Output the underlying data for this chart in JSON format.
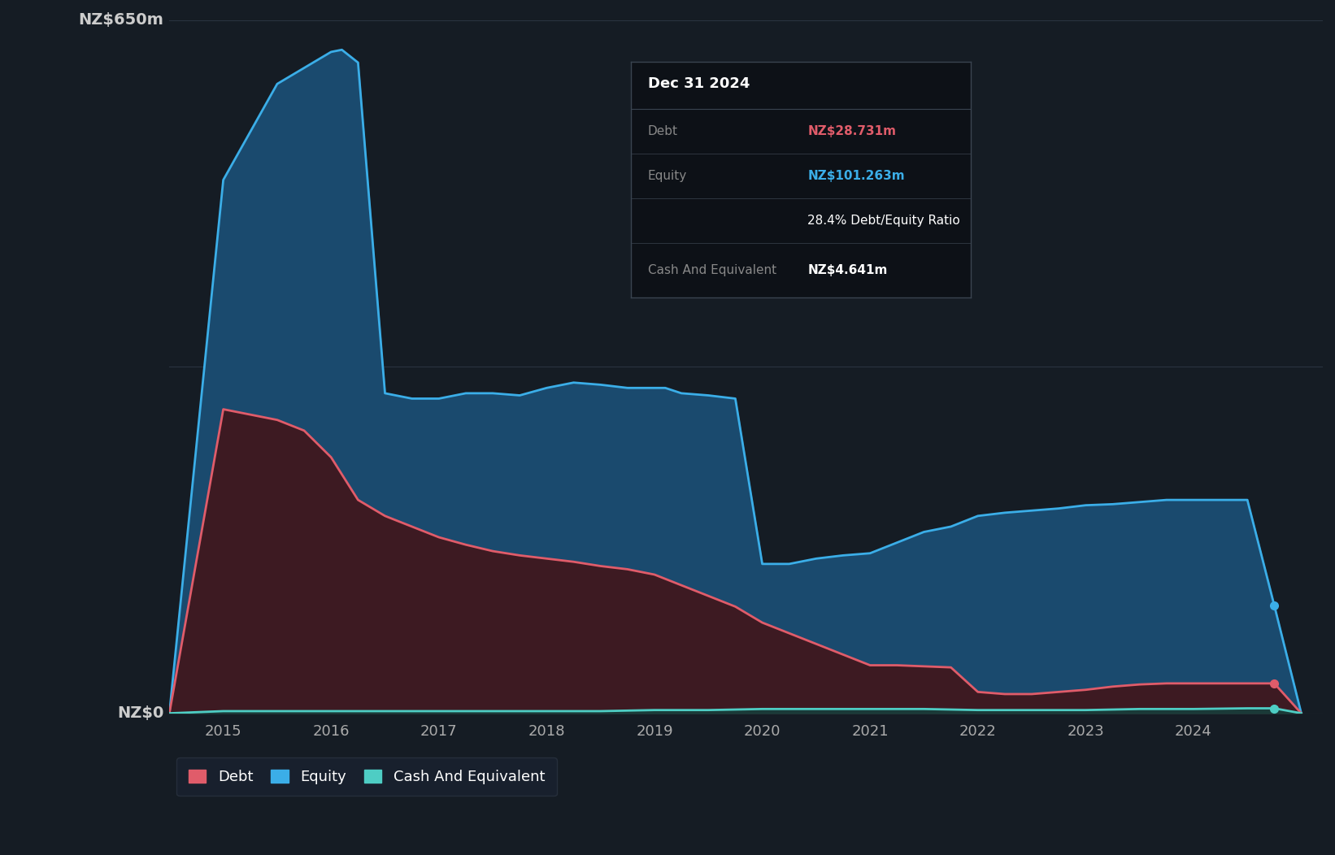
{
  "background_color": "#151c24",
  "plot_bg_color": "#151c24",
  "grid_color": "#2a3340",
  "ylabel_top": "NZ$650m",
  "ylabel_zero": "NZ$0",
  "x_ticks": [
    2015,
    2016,
    2017,
    2018,
    2019,
    2020,
    2021,
    2022,
    2023,
    2024
  ],
  "equity_color": "#3baee8",
  "equity_fill": "#1a4a6e",
  "debt_color": "#e05c6a",
  "debt_fill": "#3d1a22",
  "cash_color": "#4ecdc4",
  "cash_fill": "#1a3a38",
  "tooltip_bg": "#0d1117",
  "tooltip_border": "#3a4450",
  "tooltip_title": "Dec 31 2024",
  "tooltip_debt_label": "Debt",
  "tooltip_debt_value": "NZ$28.731m",
  "tooltip_equity_label": "Equity",
  "tooltip_equity_value": "NZ$101.263m",
  "tooltip_ratio": "28.4% Debt/Equity Ratio",
  "tooltip_cash_label": "Cash And Equivalent",
  "tooltip_cash_value": "NZ$4.641m",
  "legend_labels": [
    "Debt",
    "Equity",
    "Cash And Equivalent"
  ],
  "equity_data": {
    "years": [
      2014.5,
      2015.0,
      2015.5,
      2015.75,
      2016.0,
      2016.1,
      2016.25,
      2016.5,
      2016.75,
      2017.0,
      2017.25,
      2017.5,
      2017.75,
      2018.0,
      2018.25,
      2018.5,
      2018.75,
      2019.0,
      2019.1,
      2019.25,
      2019.5,
      2019.75,
      2020.0,
      2020.25,
      2020.5,
      2020.75,
      2021.0,
      2021.25,
      2021.5,
      2021.75,
      2022.0,
      2022.25,
      2022.5,
      2022.75,
      2023.0,
      2023.25,
      2023.5,
      2023.75,
      2024.0,
      2024.25,
      2024.5,
      2024.75,
      2025.0
    ],
    "values": [
      0,
      500,
      590,
      605,
      620,
      622,
      610,
      300,
      295,
      295,
      300,
      300,
      298,
      305,
      310,
      308,
      305,
      305,
      305,
      300,
      298,
      295,
      140,
      140,
      145,
      148,
      150,
      160,
      170,
      175,
      185,
      188,
      190,
      192,
      195,
      196,
      198,
      200,
      200,
      200,
      200,
      101,
      0
    ]
  },
  "debt_data": {
    "years": [
      2014.5,
      2015.0,
      2015.25,
      2015.5,
      2015.75,
      2016.0,
      2016.25,
      2016.5,
      2016.75,
      2017.0,
      2017.25,
      2017.5,
      2017.75,
      2018.0,
      2018.25,
      2018.5,
      2018.75,
      2019.0,
      2019.25,
      2019.5,
      2019.75,
      2020.0,
      2020.25,
      2020.5,
      2020.75,
      2021.0,
      2021.25,
      2021.5,
      2021.75,
      2022.0,
      2022.25,
      2022.5,
      2022.75,
      2023.0,
      2023.25,
      2023.5,
      2023.75,
      2024.0,
      2024.25,
      2024.5,
      2024.75,
      2025.0
    ],
    "values": [
      0,
      285,
      280,
      275,
      265,
      240,
      200,
      185,
      175,
      165,
      158,
      152,
      148,
      145,
      142,
      138,
      135,
      130,
      120,
      110,
      100,
      85,
      75,
      65,
      55,
      45,
      45,
      44,
      43,
      20,
      18,
      18,
      20,
      22,
      25,
      27,
      28,
      28,
      28,
      28,
      28,
      0
    ]
  },
  "cash_data": {
    "years": [
      2014.5,
      2015.0,
      2015.5,
      2016.0,
      2016.5,
      2017.0,
      2017.5,
      2018.0,
      2018.5,
      2019.0,
      2019.5,
      2020.0,
      2020.5,
      2021.0,
      2021.5,
      2022.0,
      2022.5,
      2023.0,
      2023.5,
      2024.0,
      2024.5,
      2024.75,
      2025.0
    ],
    "values": [
      0,
      2,
      2,
      2,
      2,
      2,
      2,
      2,
      2,
      3,
      3,
      4,
      4,
      4,
      4,
      3,
      3,
      3,
      4,
      4,
      4.641,
      4.641,
      0
    ]
  },
  "ylim": [
    0,
    650
  ],
  "xlim": [
    2014.5,
    2025.2
  ]
}
